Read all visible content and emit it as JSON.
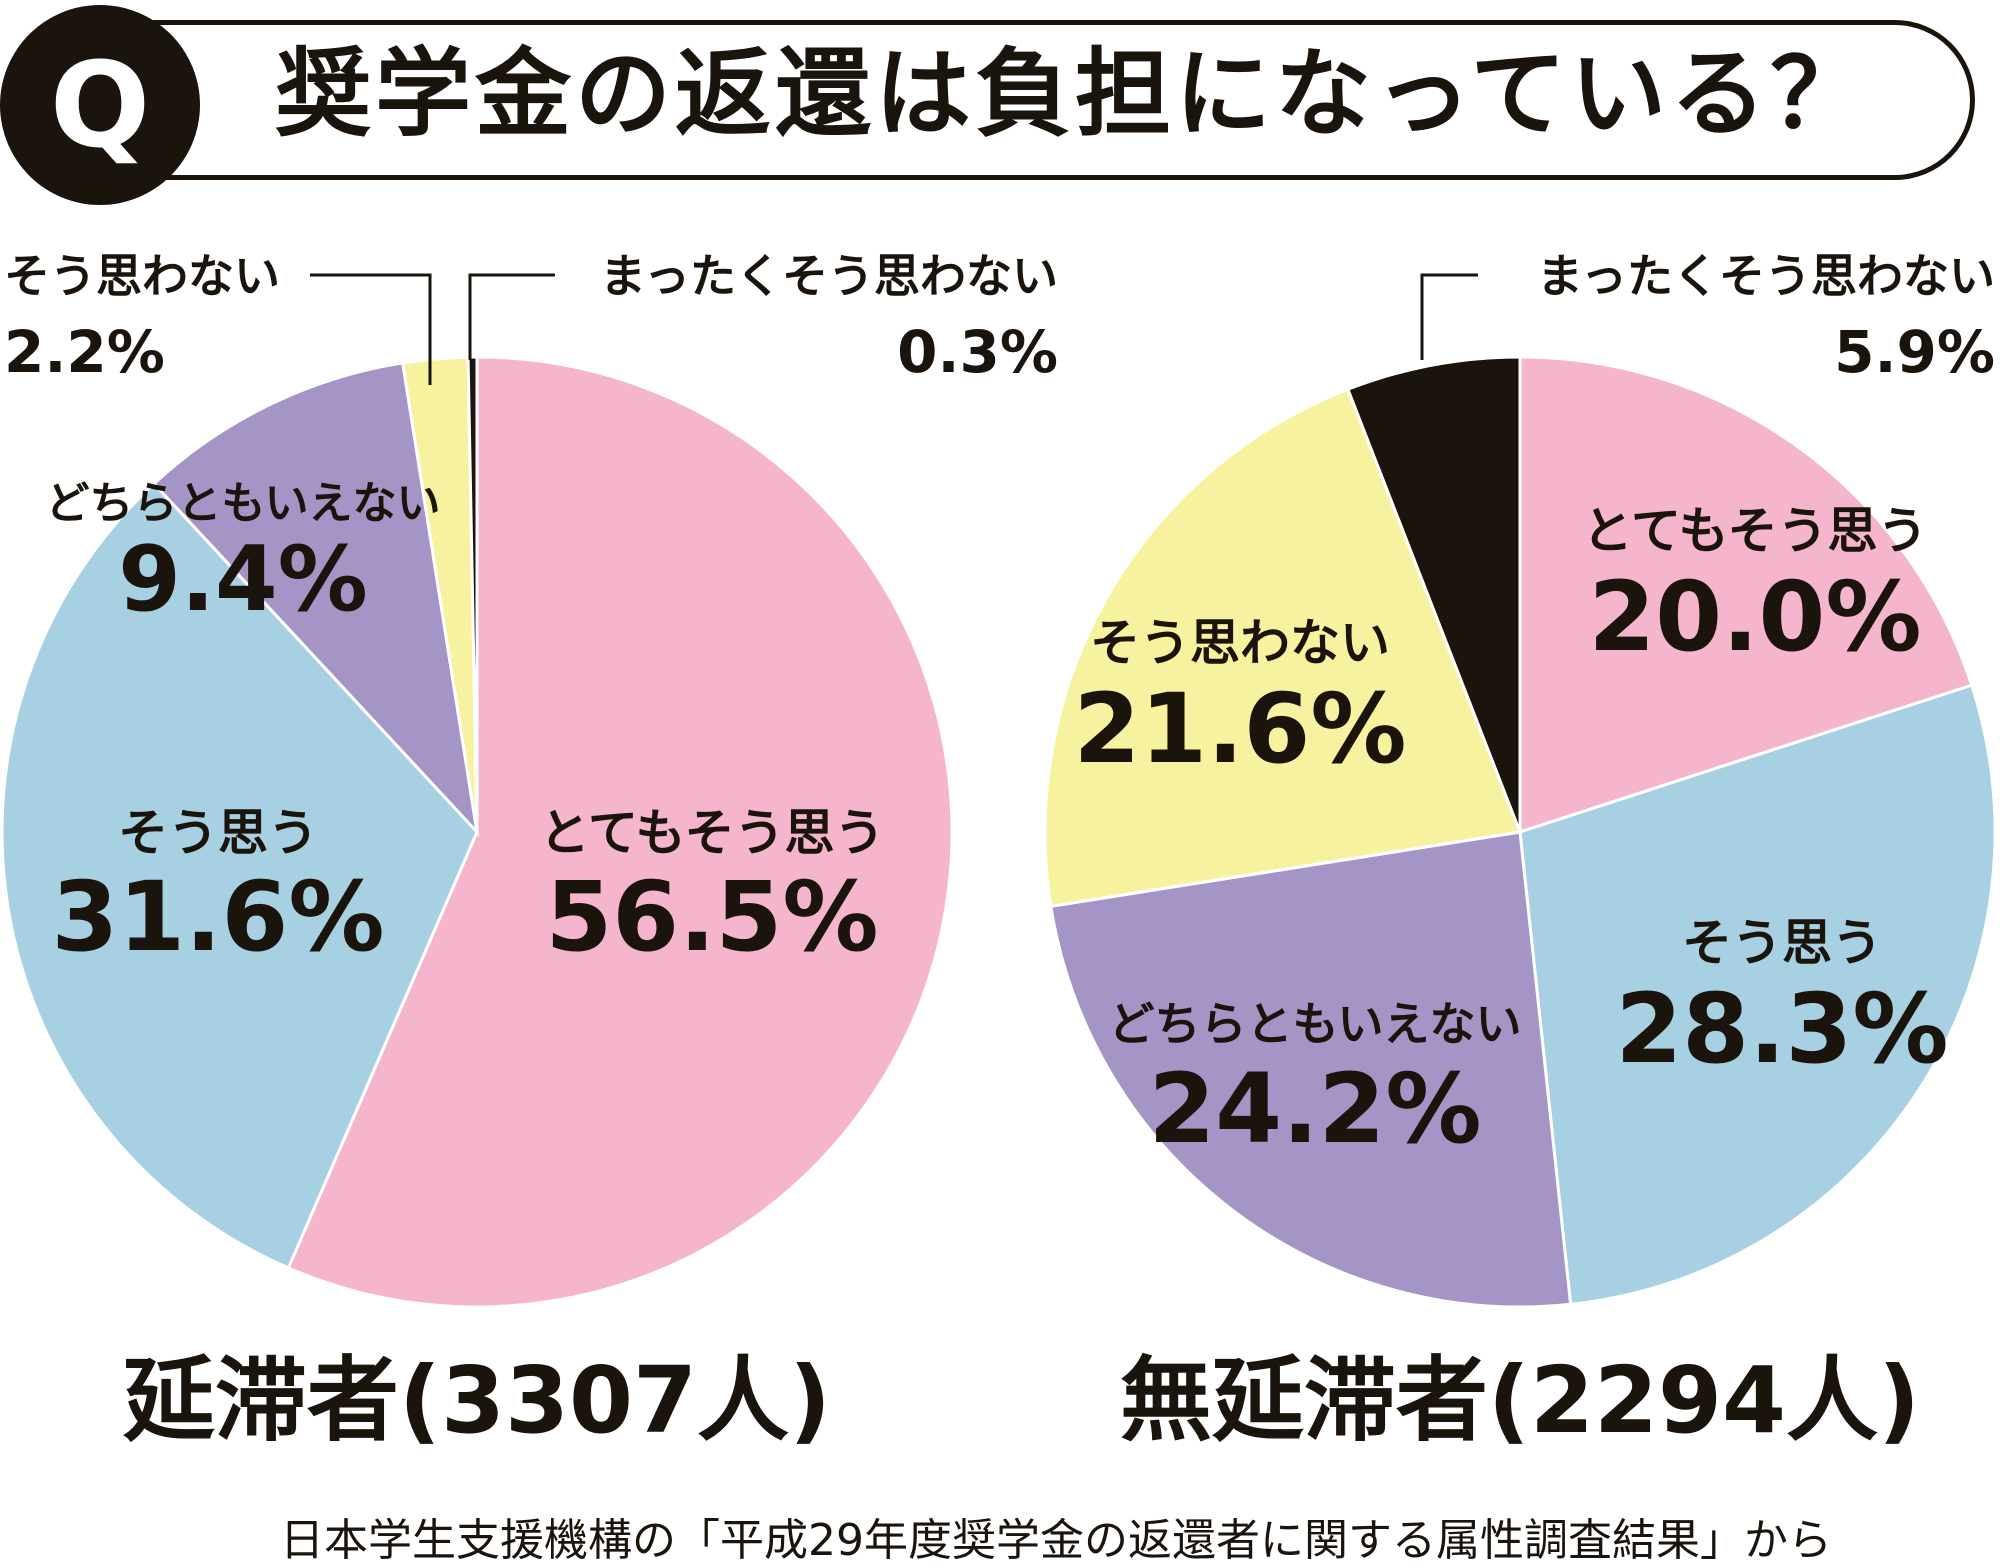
{
  "header": {
    "badge": "Q",
    "title": "奨学金の返還は負担になっている？"
  },
  "colors": {
    "pink": "#f4b5cd",
    "blue": "#a7d1e2",
    "purple": "#a495c6",
    "yellow": "#f6f2a0",
    "black": "#1a140c"
  },
  "chart_data": [
    {
      "type": "pie",
      "title": "延滞者(3307人)",
      "slices": [
        {
          "label": "とてもそう思う",
          "value": 56.5,
          "value_label": "56.5%",
          "color": "#f4b5cd"
        },
        {
          "label": "そう思う",
          "value": 31.6,
          "value_label": "31.6%",
          "color": "#a7d1e2"
        },
        {
          "label": "どちらともいえない",
          "value": 9.4,
          "value_label": "9.4%",
          "color": "#a495c6"
        },
        {
          "label": "そう思わない",
          "value": 2.2,
          "value_label": "2.2%",
          "color": "#f6f2a0"
        },
        {
          "label": "まったくそう思わない",
          "value": 0.3,
          "value_label": "0.3%",
          "color": "#1a140c"
        }
      ]
    },
    {
      "type": "pie",
      "title": "無延滞者(2294人)",
      "slices": [
        {
          "label": "とてもそう思う",
          "value": 20.0,
          "value_label": "20.0%",
          "color": "#f4b5cd"
        },
        {
          "label": "そう思う",
          "value": 28.3,
          "value_label": "28.3%",
          "color": "#a7d1e2"
        },
        {
          "label": "どちらともいえない",
          "value": 24.2,
          "value_label": "24.2%",
          "color": "#a495c6"
        },
        {
          "label": "そう思わない",
          "value": 21.6,
          "value_label": "21.6%",
          "color": "#f6f2a0"
        },
        {
          "label": "まったくそう思わない",
          "value": 5.9,
          "value_label": "5.9%",
          "color": "#1a140c"
        }
      ]
    }
  ],
  "footer": {
    "source": "日本学生支援機構の「平成29年度奨学金の返還者に関する属性調査結果」から"
  }
}
